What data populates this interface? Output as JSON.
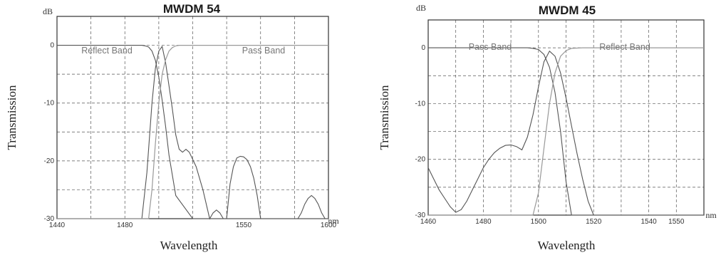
{
  "chart_data": [
    {
      "type": "line",
      "title": "MWDM 54",
      "y_unit": "dB",
      "x_unit": "nm",
      "ylabel": "Transmission",
      "xlabel": "Wavelength",
      "xlim": [
        1440,
        1600
      ],
      "ylim": [
        -30,
        5
      ],
      "x_ticks": [
        1440,
        1480,
        1550,
        1600
      ],
      "x_grid": [
        1460,
        1480,
        1500,
        1520,
        1540,
        1560,
        1580
      ],
      "y_ticks": [
        0,
        -10,
        -20,
        -30
      ],
      "y_grid": [
        0,
        -5,
        -10,
        -15,
        -20,
        -25
      ],
      "band_labels": [
        "Reflect Band",
        "Pass Band"
      ],
      "series": [
        {
          "x": [
            1440,
            1490,
            1492,
            1494,
            1496,
            1498,
            1500,
            1502,
            1504,
            1506,
            1510,
            1520,
            1540,
            1600
          ],
          "y": [
            0,
            0,
            -0.1,
            -0.3,
            -1.0,
            -2.6,
            -5.5,
            -9.5,
            -14.0,
            -19.0,
            -26.0,
            -30,
            -30,
            -30
          ]
        },
        {
          "x": [
            1490,
            1493,
            1496,
            1498,
            1500,
            1502,
            1504,
            1506,
            1508,
            1510,
            1512,
            1514,
            1516,
            1518,
            1522,
            1526,
            1530,
            1532,
            1534,
            1536,
            1538,
            1540,
            1542,
            1544,
            1546,
            1548,
            1550,
            1552,
            1554,
            1556,
            1558,
            1560,
            1562,
            1564,
            1566,
            1568,
            1570,
            1572,
            1574,
            1576,
            1578,
            1580,
            1582,
            1584,
            1586,
            1588,
            1590,
            1592,
            1594,
            1596,
            1598,
            1600
          ],
          "y": [
            -30,
            -22,
            -10,
            -4,
            -1.0,
            -0.2,
            -3,
            -7,
            -11,
            -15.5,
            -18,
            -18.5,
            -18,
            -18.5,
            -21,
            -25,
            -30,
            -29,
            -28.5,
            -29,
            -30,
            -30,
            -24,
            -21,
            -19.5,
            -19.2,
            -19.3,
            -19.8,
            -21,
            -23,
            -26,
            -30,
            -30,
            -30,
            -30,
            -30,
            -30,
            -30,
            -30,
            -30,
            -30,
            -30,
            -30,
            -29,
            -27.5,
            -26.5,
            -26,
            -26.5,
            -27.5,
            -29,
            -30,
            -30
          ]
        },
        {
          "x": [
            1440,
            1494,
            1496,
            1498,
            1500,
            1502,
            1504,
            1506,
            1508,
            1510,
            1512,
            1514,
            1600
          ],
          "y": [
            -30,
            -30,
            -25,
            -17,
            -10,
            -5,
            -2.5,
            -1.0,
            -0.4,
            -0.1,
            0,
            0,
            0
          ]
        }
      ]
    },
    {
      "type": "line",
      "title": "MWDM 45",
      "y_unit": "dB",
      "x_unit": "nm",
      "ylabel": "Transmission",
      "xlabel": "Wavelength",
      "xlim": [
        1460,
        1560
      ],
      "ylim": [
        -30,
        5
      ],
      "x_ticks": [
        1460,
        1480,
        1500,
        1520,
        1540,
        1550
      ],
      "x_grid": [
        1470,
        1480,
        1490,
        1500,
        1510,
        1520,
        1530,
        1540,
        1550
      ],
      "y_ticks": [
        0,
        -10,
        -20,
        -30
      ],
      "y_grid": [
        0,
        -5,
        -10,
        -15,
        -20,
        -25
      ],
      "band_labels": [
        "Pass Band",
        "Reflect Band"
      ],
      "series": [
        {
          "x": [
            1460,
            1462,
            1464,
            1466,
            1468,
            1470,
            1472,
            1474,
            1476,
            1478,
            1480,
            1482,
            1484,
            1486,
            1488,
            1490,
            1492,
            1494,
            1496,
            1498,
            1500,
            1502,
            1504,
            1506,
            1508,
            1510,
            1512,
            1514,
            1516,
            1518,
            1520
          ],
          "y": [
            -21.5,
            -23.5,
            -25.5,
            -27,
            -28.5,
            -29.5,
            -29,
            -27.5,
            -25.5,
            -23.5,
            -21.5,
            -20,
            -18.8,
            -18,
            -17.5,
            -17.4,
            -17.7,
            -18.3,
            -16,
            -12,
            -7,
            -2.5,
            -0.6,
            -1.5,
            -4.5,
            -9,
            -14,
            -19,
            -23.5,
            -27.5,
            -30
          ]
        },
        {
          "x": [
            1460,
            1496,
            1498,
            1500,
            1502,
            1504,
            1506,
            1508,
            1510,
            1512,
            1514,
            1560
          ],
          "y": [
            0,
            0,
            -0.1,
            -0.3,
            -1.2,
            -3.5,
            -8,
            -15,
            -24,
            -30,
            -30,
            -30
          ]
        },
        {
          "x": [
            1460,
            1498,
            1500,
            1502,
            1504,
            1506,
            1508,
            1510,
            1512,
            1516,
            1560
          ],
          "y": [
            -30,
            -30,
            -26,
            -18,
            -10,
            -4.5,
            -1.5,
            -0.5,
            -0.1,
            0,
            0
          ]
        }
      ]
    }
  ]
}
